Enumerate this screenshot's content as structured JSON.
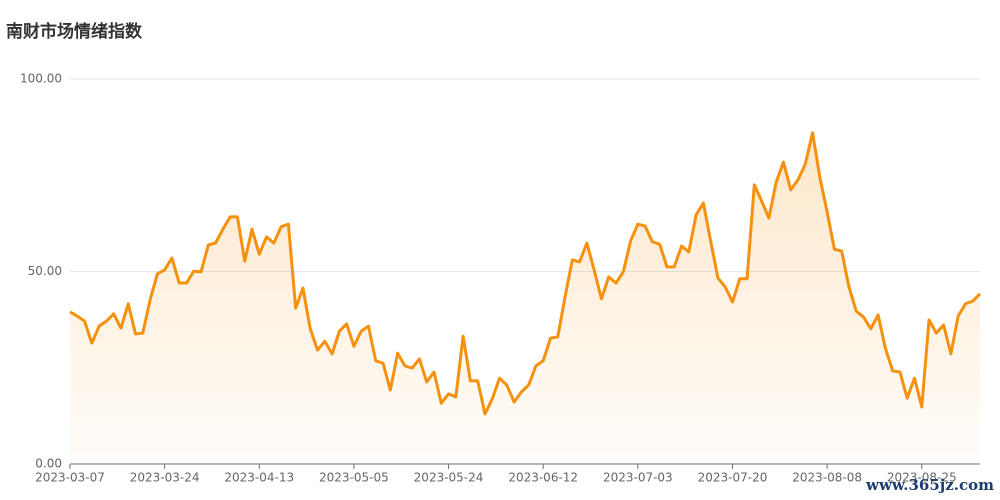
{
  "chart_data": {
    "type": "line",
    "title": "南财市场情绪指数",
    "watermark": "www.365jz.com",
    "categories": [
      "2023-03-07",
      null,
      null,
      null,
      null,
      null,
      null,
      null,
      null,
      null,
      null,
      null,
      null,
      "2023-03-24",
      null,
      null,
      null,
      null,
      null,
      null,
      null,
      null,
      null,
      null,
      null,
      null,
      "2023-04-13",
      null,
      null,
      null,
      null,
      null,
      null,
      null,
      null,
      null,
      null,
      null,
      null,
      "2023-05-05",
      null,
      null,
      null,
      null,
      null,
      null,
      null,
      null,
      null,
      null,
      null,
      null,
      "2023-05-24",
      null,
      null,
      null,
      null,
      null,
      null,
      null,
      null,
      null,
      null,
      null,
      null,
      "2023-06-12",
      null,
      null,
      null,
      null,
      null,
      null,
      null,
      null,
      null,
      null,
      null,
      null,
      "2023-07-03",
      null,
      null,
      null,
      null,
      null,
      null,
      null,
      null,
      null,
      null,
      null,
      null,
      "2023-07-20",
      null,
      null,
      null,
      null,
      null,
      null,
      null,
      null,
      null,
      null,
      null,
      null,
      "2023-08-08",
      null,
      null,
      null,
      null,
      null,
      null,
      null,
      null,
      null,
      null,
      null,
      null,
      "2023-08-25",
      null,
      null,
      null,
      null,
      null,
      null,
      null,
      null
    ],
    "series": [
      {
        "color": "#f5910f",
        "values": [
          39.5,
          38.4,
          37.1,
          31.4,
          35.8,
          37.1,
          39,
          35.3,
          41.6,
          33.8,
          34,
          42.6,
          49.4,
          50.4,
          53.5,
          47,
          47,
          50.1,
          49.9,
          56.9,
          57.4,
          61,
          64.2,
          64.2,
          52.7,
          61,
          54.5,
          59,
          57.4,
          61.6,
          62.3,
          40.5,
          45.7,
          35.1,
          29.6,
          31.9,
          28.6,
          34.5,
          36.4,
          30.6,
          34.5,
          35.8,
          26.8,
          26.2,
          19.2,
          28.8,
          25.5,
          24.9,
          27.3,
          21.3,
          23.9,
          15.8,
          18.2,
          17.4,
          33.2,
          21.6,
          21.6,
          13,
          16.9,
          22.3,
          20.5,
          16.1,
          18.7,
          20.5,
          25.5,
          26.8,
          32.7,
          33,
          43.4,
          53,
          52.5,
          57.4,
          50.4,
          42.9,
          48.6,
          47,
          49.9,
          57.9,
          62.3,
          61.8,
          57.7,
          57.1,
          51.2,
          51.2,
          56.6,
          55.1,
          64.7,
          67.8,
          57.9,
          48.3,
          46,
          42.1,
          48.1,
          48.1,
          72.5,
          68.3,
          63.9,
          73.2,
          78.4,
          71.2,
          73.8,
          77.9,
          86,
          74.5,
          65.5,
          55.8,
          55.3,
          46,
          39.7,
          38.2,
          35.1,
          38.7,
          30.1,
          24.2,
          23.9,
          17.1,
          22.3,
          14.8,
          37.4,
          34,
          36.1,
          28.6,
          38.4,
          41.6,
          42.3,
          44.2
        ]
      }
    ],
    "ylim": [
      0,
      100
    ],
    "yticks": [
      {
        "value": 0,
        "label": "0.00"
      },
      {
        "value": 50,
        "label": "50.00"
      },
      {
        "value": 100,
        "label": "100.00"
      }
    ],
    "grid": true
  }
}
